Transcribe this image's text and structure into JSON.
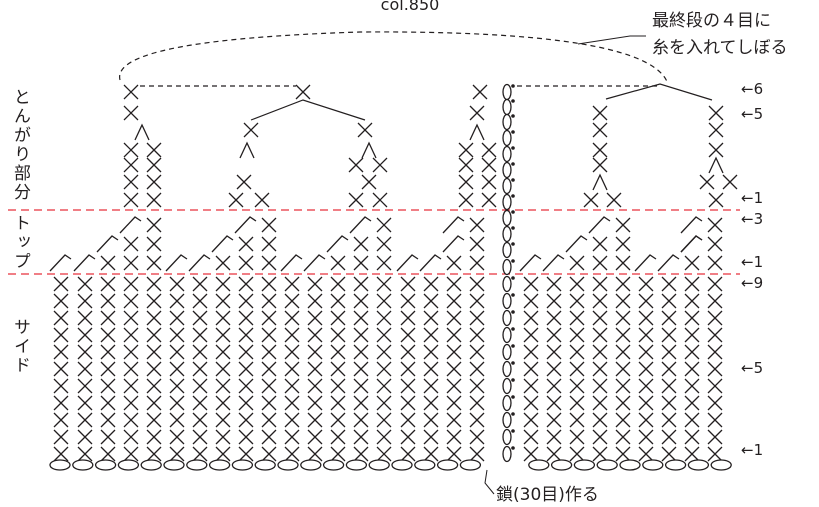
{
  "header": {
    "color_code": "col.850"
  },
  "labels": {
    "finish_note_line1": "最終段の４目に",
    "finish_note_line2": "糸を入れてしぼる",
    "section_top_point": "とんがり部分",
    "section_top": "トップ",
    "section_side": "サイド",
    "chain_note": "鎖(30目)作る"
  },
  "row_markers": [
    "←6",
    "←5",
    "←1",
    "←3",
    "←1",
    "←9",
    "←5",
    "←1"
  ],
  "colors": {
    "ink": "#231f20",
    "guide_line": "#e8323c"
  },
  "stitch_counts": {
    "side_rows": 9,
    "top_rows": 3,
    "chain": 30
  },
  "icons": [
    "sc-stitch-icon",
    "sc-decrease-icon",
    "slip-stitch-icon",
    "chain-stitch-icon",
    "increase-slant-icon"
  ]
}
